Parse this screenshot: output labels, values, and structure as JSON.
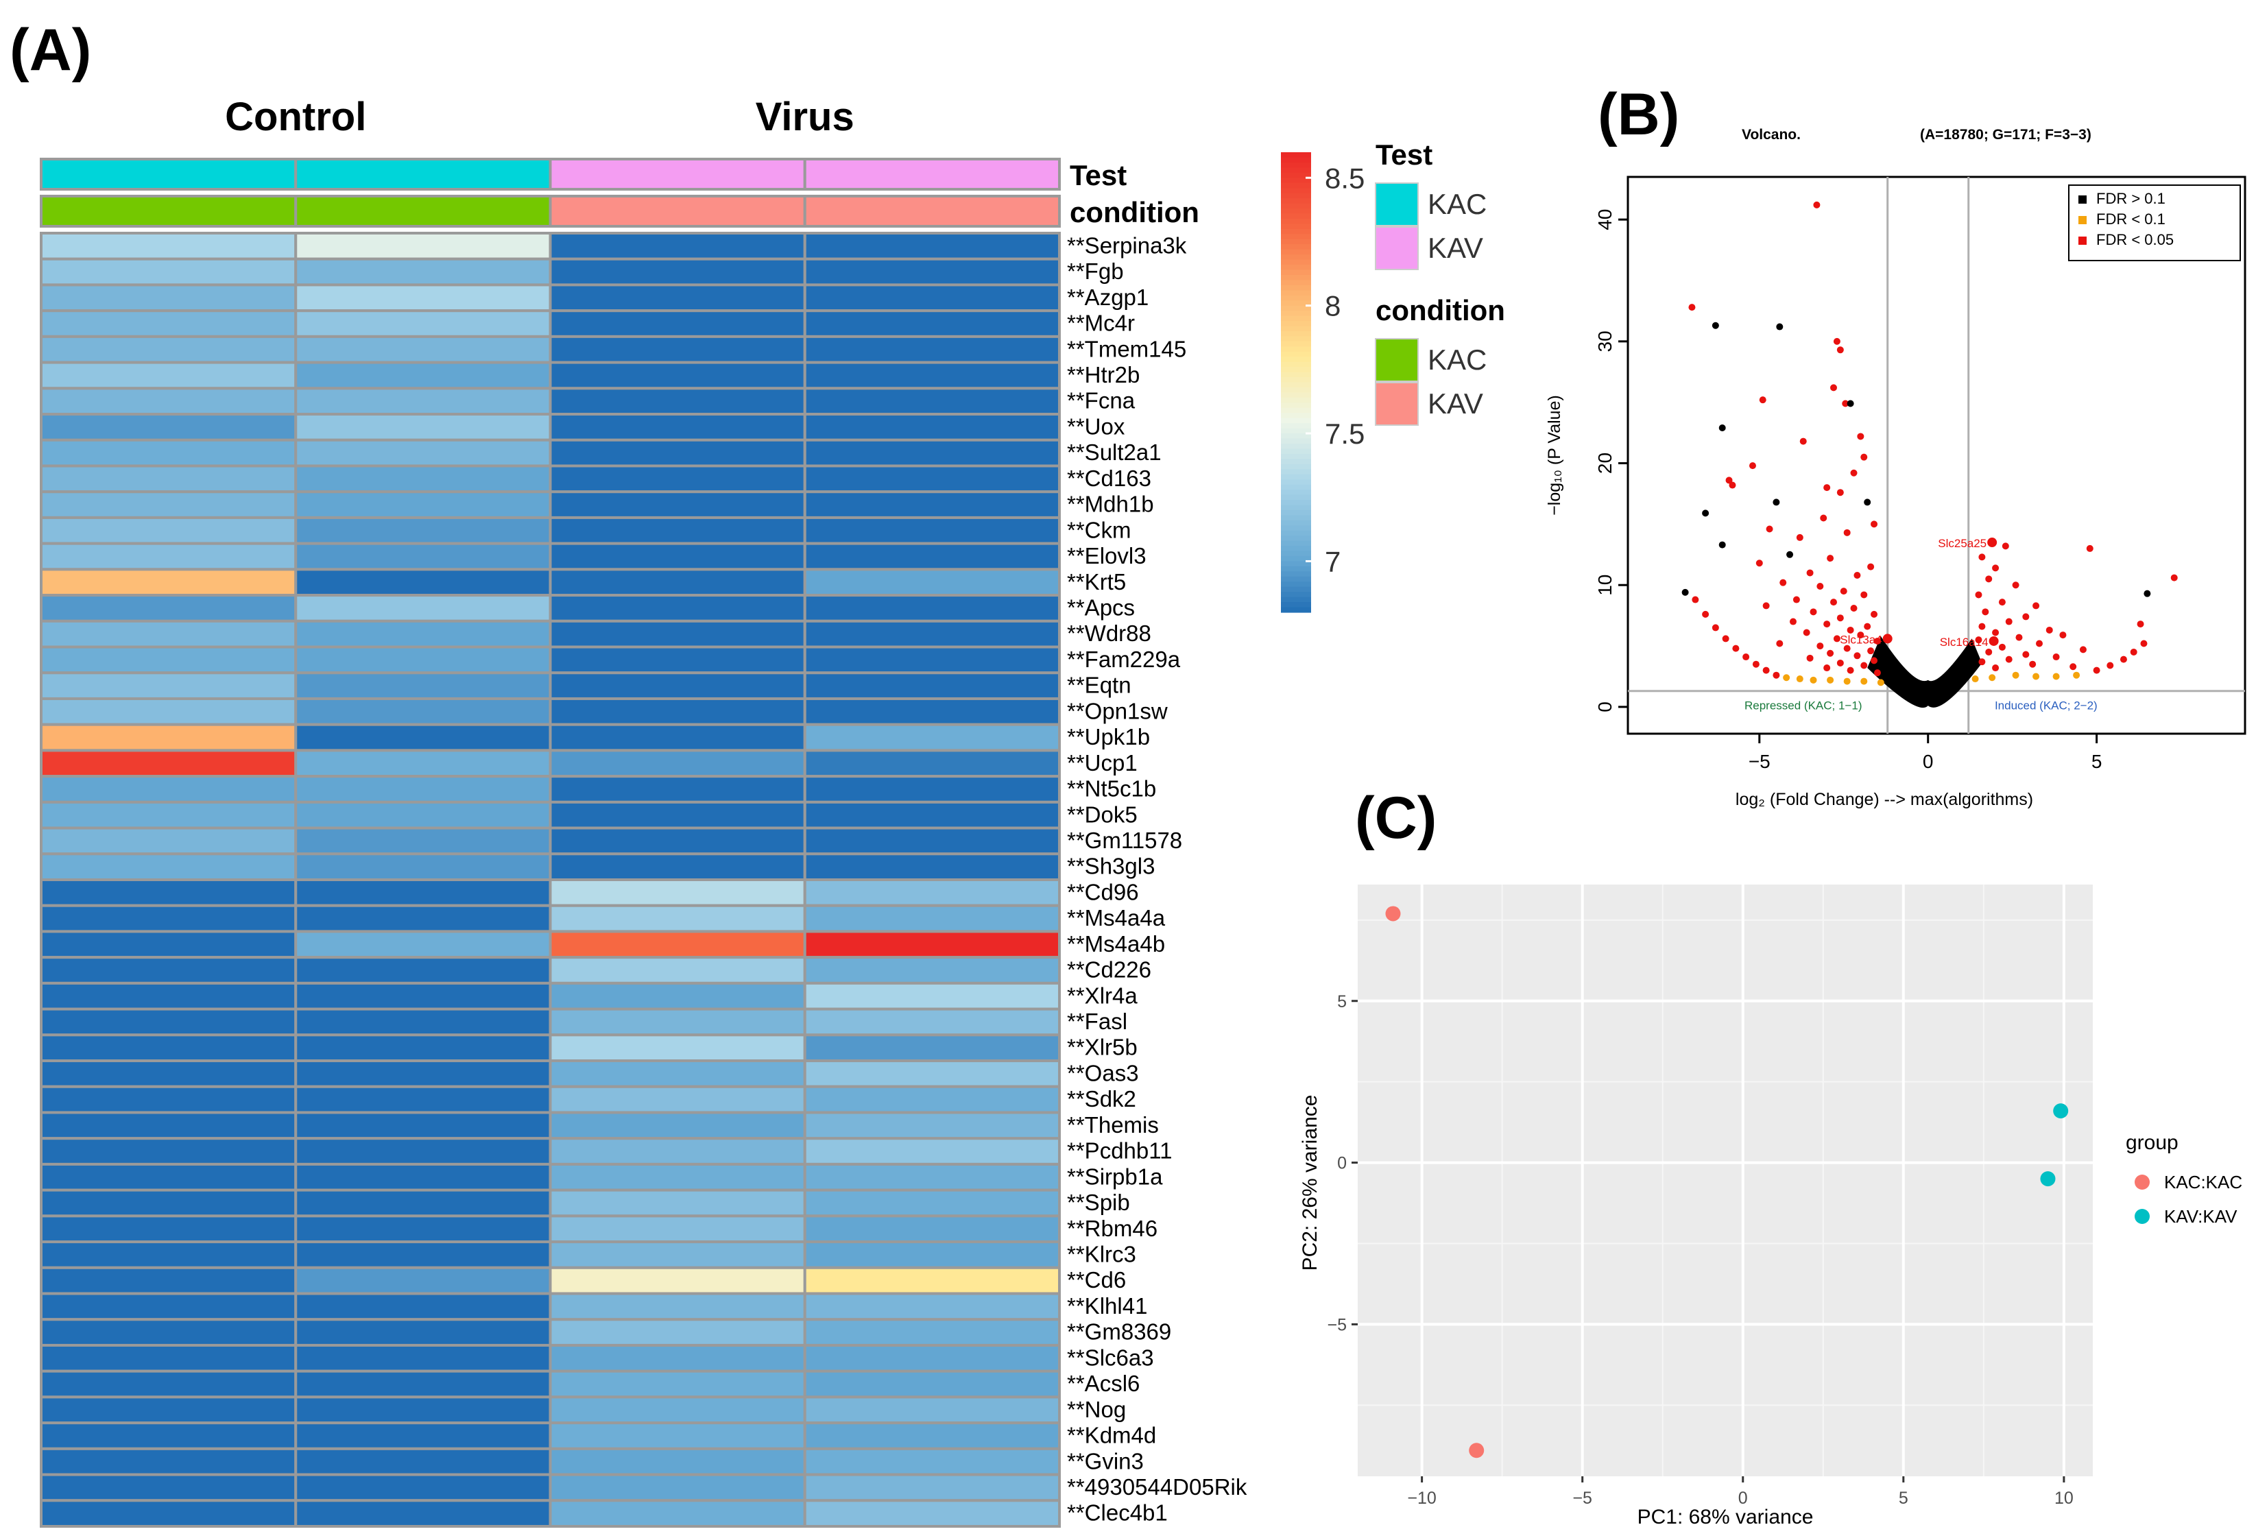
{
  "panel_labels": {
    "a": "(A)",
    "b": "(B)",
    "c": "(C)"
  },
  "chart_data": [
    {
      "type": "heatmap",
      "panel": "(A)",
      "column_groups": [
        "Control",
        "Virus"
      ],
      "annotation_rows": [
        "Test",
        "condition"
      ],
      "column_annotations": {
        "Test": [
          "KAC",
          "KAC",
          "KAV",
          "KAV"
        ],
        "condition": [
          "KAC",
          "KAC",
          "KAV",
          "KAV"
        ]
      },
      "legend": {
        "Test": {
          "title": "Test",
          "levels": [
            {
              "label": "KAC",
              "color": "#00d5d9"
            },
            {
              "label": "KAV",
              "color": "#f49df2"
            }
          ]
        },
        "condition": {
          "title": "condition",
          "levels": [
            {
              "label": "KAC",
              "color": "#74c800"
            },
            {
              "label": "KAV",
              "color": "#fb8f87"
            }
          ]
        }
      },
      "colorbar": {
        "min": 6.8,
        "max": 8.6,
        "ticks": [
          "8.5",
          "8",
          "7.5",
          "7"
        ],
        "tick_values": [
          8.5,
          8.0,
          7.5,
          7.0
        ]
      },
      "genes": [
        "**Serpina3k",
        "**Fgb",
        "**Azgp1",
        "**Mc4r",
        "**Tmem145",
        "**Htr2b",
        "**Fcna",
        "**Uox",
        "**Sult2a1",
        "**Cd163",
        "**Mdh1b",
        "**Ckm",
        "**Elovl3",
        "**Krt5",
        "**Apcs",
        "**Wdr88",
        "**Fam229a",
        "**Eqtn",
        "**Opn1sw",
        "**Upk1b",
        "**Ucp1",
        "**Nt5c1b",
        "**Dok5",
        "**Gm11578",
        "**Sh3gl3",
        "**Cd96",
        "**Ms4a4a",
        "**Ms4a4b",
        "**Cd226",
        "**Xlr4a",
        "**Fasl",
        "**Xlr5b",
        "**Oas3",
        "**Sdk2",
        "**Themis",
        "**Pcdhb11",
        "**Sirpb1a",
        "**Spib",
        "**Rbm46",
        "**Klrc3",
        "**Cd6",
        "**Klhl41",
        "**Gm8369",
        "**Slc6a3",
        "**Acsl6",
        "**Nog",
        "**Kdm4d",
        "**Gvin3",
        "**4930544D05Rik",
        "**Clec4b1"
      ],
      "values": [
        [
          7.3,
          7.5,
          6.8,
          6.8
        ],
        [
          7.2,
          7.1,
          6.8,
          6.8
        ],
        [
          7.1,
          7.3,
          6.8,
          6.8
        ],
        [
          7.1,
          7.2,
          6.8,
          6.8
        ],
        [
          7.1,
          7.1,
          6.8,
          6.8
        ],
        [
          7.2,
          7.0,
          6.8,
          6.8
        ],
        [
          7.1,
          7.1,
          6.8,
          6.8
        ],
        [
          6.95,
          7.2,
          6.8,
          6.8
        ],
        [
          7.05,
          7.1,
          6.8,
          6.8
        ],
        [
          7.1,
          7.0,
          6.8,
          6.8
        ],
        [
          7.1,
          7.0,
          6.8,
          6.8
        ],
        [
          7.15,
          6.95,
          6.8,
          6.8
        ],
        [
          7.15,
          6.95,
          6.8,
          6.8
        ],
        [
          8.0,
          6.8,
          6.8,
          7.0
        ],
        [
          6.95,
          7.2,
          6.8,
          6.8
        ],
        [
          7.1,
          7.0,
          6.8,
          6.8
        ],
        [
          7.05,
          7.0,
          6.8,
          6.8
        ],
        [
          7.15,
          6.95,
          6.8,
          6.8
        ],
        [
          7.15,
          6.95,
          6.8,
          6.8
        ],
        [
          8.05,
          6.8,
          6.8,
          7.05
        ],
        [
          8.5,
          7.05,
          6.95,
          6.85
        ],
        [
          7.0,
          7.0,
          6.8,
          6.8
        ],
        [
          7.05,
          7.0,
          6.8,
          6.8
        ],
        [
          7.1,
          6.95,
          6.8,
          6.8
        ],
        [
          7.05,
          6.95,
          6.8,
          6.8
        ],
        [
          6.8,
          6.8,
          7.35,
          7.15
        ],
        [
          6.8,
          6.8,
          7.25,
          7.05
        ],
        [
          6.8,
          7.05,
          8.3,
          8.6
        ],
        [
          6.8,
          6.8,
          7.25,
          7.05
        ],
        [
          6.8,
          6.8,
          7.0,
          7.3
        ],
        [
          6.8,
          6.8,
          7.1,
          7.15
        ],
        [
          6.8,
          6.8,
          7.3,
          6.95
        ],
        [
          6.8,
          6.8,
          7.05,
          7.2
        ],
        [
          6.8,
          6.8,
          7.15,
          7.05
        ],
        [
          6.8,
          6.8,
          7.0,
          7.1
        ],
        [
          6.8,
          6.8,
          7.1,
          7.2
        ],
        [
          6.8,
          6.8,
          7.05,
          7.05
        ],
        [
          6.8,
          6.8,
          7.15,
          7.05
        ],
        [
          6.8,
          6.8,
          7.15,
          7.0
        ],
        [
          6.8,
          6.8,
          7.1,
          7.0
        ],
        [
          6.8,
          6.95,
          7.65,
          7.8
        ],
        [
          6.8,
          6.8,
          7.1,
          7.1
        ],
        [
          6.8,
          6.8,
          7.15,
          7.05
        ],
        [
          6.8,
          6.8,
          7.0,
          7.0
        ],
        [
          6.8,
          6.8,
          7.05,
          7.0
        ],
        [
          6.8,
          6.8,
          7.05,
          7.1
        ],
        [
          6.8,
          6.8,
          7.05,
          7.0
        ],
        [
          6.8,
          6.8,
          7.0,
          7.05
        ],
        [
          6.8,
          6.8,
          7.0,
          7.1
        ],
        [
          6.8,
          6.8,
          7.05,
          7.15
        ]
      ]
    },
    {
      "type": "scatter",
      "panel": "(B)",
      "title": "Volcano.",
      "subtitle": "(A=18780;  G=171;  F=3−3)",
      "xlabel": "log₂ (Fold Change)  --> max(algorithms)",
      "ylabel": "−log₁₀ (P Value)",
      "xlim": [
        -8.9,
        9.4
      ],
      "ylim": [
        -2.2,
        43.5
      ],
      "xticks": [
        -5,
        0,
        5
      ],
      "yticks": [
        0,
        10,
        20,
        30,
        40
      ],
      "threshold_lines": {
        "x": [
          -1.2,
          1.2
        ],
        "y": [
          1.3
        ]
      },
      "legend": [
        {
          "label": "FDR > 0.1",
          "color": "#000000"
        },
        {
          "label": "FDR < 0.1",
          "color": "#f4a30c"
        },
        {
          "label": "FDR < 0.05",
          "color": "#e8110f"
        }
      ],
      "region_labels": {
        "left": "Repressed (KAC;  1−1)",
        "right": "Induced (KAC;  2−2)"
      },
      "highlighted_genes": [
        {
          "label": "Slc25a25",
          "x": 1.9,
          "y": 13.5
        },
        {
          "label": "Slc13a4",
          "x": -1.2,
          "y": 5.6
        },
        {
          "label": "Slc16a14",
          "x": 1.95,
          "y": 5.4
        }
      ],
      "points": [
        {
          "x": -3.3,
          "y": 41.2,
          "fdr": "<0.05"
        },
        {
          "x": -7.0,
          "y": 32.8,
          "fdr": "<0.05"
        },
        {
          "x": -6.3,
          "y": 31.3,
          "fdr": ">0.1"
        },
        {
          "x": -4.4,
          "y": 31.2,
          "fdr": ">0.1"
        },
        {
          "x": -2.7,
          "y": 30.0,
          "fdr": "<0.05"
        },
        {
          "x": -2.6,
          "y": 29.3,
          "fdr": "<0.05"
        },
        {
          "x": -2.8,
          "y": 26.2,
          "fdr": "<0.05"
        },
        {
          "x": -4.9,
          "y": 25.2,
          "fdr": "<0.05"
        },
        {
          "x": -2.45,
          "y": 24.9,
          "fdr": "<0.05"
        },
        {
          "x": -2.3,
          "y": 24.9,
          "fdr": ">0.1"
        },
        {
          "x": -6.1,
          "y": 22.9,
          "fdr": ">0.1"
        },
        {
          "x": -2.0,
          "y": 22.2,
          "fdr": "<0.05"
        },
        {
          "x": -3.7,
          "y": 21.8,
          "fdr": "<0.05"
        },
        {
          "x": -1.9,
          "y": 20.5,
          "fdr": "<0.05"
        },
        {
          "x": -5.2,
          "y": 19.8,
          "fdr": "<0.05"
        },
        {
          "x": -2.2,
          "y": 19.2,
          "fdr": "<0.05"
        },
        {
          "x": -5.9,
          "y": 18.6,
          "fdr": "<0.05"
        },
        {
          "x": -5.8,
          "y": 18.2,
          "fdr": "<0.05"
        },
        {
          "x": -3.0,
          "y": 18.0,
          "fdr": "<0.05"
        },
        {
          "x": -2.6,
          "y": 17.6,
          "fdr": "<0.05"
        },
        {
          "x": -4.5,
          "y": 16.8,
          "fdr": ">0.1"
        },
        {
          "x": -1.8,
          "y": 16.8,
          "fdr": ">0.1"
        },
        {
          "x": -6.6,
          "y": 15.9,
          "fdr": ">0.1"
        },
        {
          "x": -3.1,
          "y": 15.5,
          "fdr": "<0.05"
        },
        {
          "x": -1.6,
          "y": 15.0,
          "fdr": "<0.05"
        },
        {
          "x": -4.7,
          "y": 14.6,
          "fdr": "<0.05"
        },
        {
          "x": -2.4,
          "y": 14.3,
          "fdr": "<0.05"
        },
        {
          "x": -3.8,
          "y": 13.9,
          "fdr": "<0.05"
        },
        {
          "x": -6.1,
          "y": 13.3,
          "fdr": ">0.1"
        },
        {
          "x": -4.1,
          "y": 12.5,
          "fdr": ">0.1"
        },
        {
          "x": -2.9,
          "y": 12.2,
          "fdr": "<0.05"
        },
        {
          "x": -5.0,
          "y": 11.8,
          "fdr": "<0.05"
        },
        {
          "x": -1.7,
          "y": 11.5,
          "fdr": "<0.05"
        },
        {
          "x": -3.5,
          "y": 11.0,
          "fdr": "<0.05"
        },
        {
          "x": -2.1,
          "y": 10.8,
          "fdr": "<0.05"
        },
        {
          "x": -4.3,
          "y": 10.2,
          "fdr": "<0.05"
        },
        {
          "x": -3.2,
          "y": 9.9,
          "fdr": "<0.05"
        },
        {
          "x": -2.5,
          "y": 9.5,
          "fdr": "<0.05"
        },
        {
          "x": -7.2,
          "y": 9.4,
          "fdr": ">0.1"
        },
        {
          "x": -1.9,
          "y": 9.2,
          "fdr": "<0.05"
        },
        {
          "x": -3.9,
          "y": 8.8,
          "fdr": "<0.05"
        },
        {
          "x": -2.8,
          "y": 8.6,
          "fdr": "<0.05"
        },
        {
          "x": -4.8,
          "y": 8.3,
          "fdr": "<0.05"
        },
        {
          "x": -2.2,
          "y": 8.1,
          "fdr": "<0.05"
        },
        {
          "x": -3.4,
          "y": 7.8,
          "fdr": "<0.05"
        },
        {
          "x": -1.6,
          "y": 7.6,
          "fdr": "<0.05"
        },
        {
          "x": -2.6,
          "y": 7.3,
          "fdr": "<0.05"
        },
        {
          "x": -4.0,
          "y": 7.0,
          "fdr": "<0.05"
        },
        {
          "x": -3.0,
          "y": 6.8,
          "fdr": "<0.05"
        },
        {
          "x": -1.8,
          "y": 6.6,
          "fdr": "<0.05"
        },
        {
          "x": -2.3,
          "y": 6.3,
          "fdr": "<0.05"
        },
        {
          "x": -3.6,
          "y": 6.1,
          "fdr": "<0.05"
        },
        {
          "x": -2.0,
          "y": 5.9,
          "fdr": "<0.05"
        },
        {
          "x": -2.7,
          "y": 5.6,
          "fdr": "<0.05"
        },
        {
          "x": -1.5,
          "y": 5.4,
          "fdr": "<0.05"
        },
        {
          "x": -4.4,
          "y": 5.2,
          "fdr": "<0.05"
        },
        {
          "x": -3.2,
          "y": 5.0,
          "fdr": "<0.05"
        },
        {
          "x": -2.4,
          "y": 4.8,
          "fdr": "<0.05"
        },
        {
          "x": -1.7,
          "y": 4.6,
          "fdr": "<0.05"
        },
        {
          "x": -2.9,
          "y": 4.4,
          "fdr": "<0.05"
        },
        {
          "x": -2.1,
          "y": 4.2,
          "fdr": "<0.05"
        },
        {
          "x": -3.5,
          "y": 4.0,
          "fdr": "<0.05"
        },
        {
          "x": -1.6,
          "y": 3.8,
          "fdr": "<0.05"
        },
        {
          "x": -2.6,
          "y": 3.6,
          "fdr": "<0.05"
        },
        {
          "x": -1.9,
          "y": 3.4,
          "fdr": "<0.05"
        },
        {
          "x": -3.0,
          "y": 3.2,
          "fdr": "<0.05"
        },
        {
          "x": -2.3,
          "y": 3.0,
          "fdr": "<0.05"
        },
        {
          "x": -1.5,
          "y": 2.8,
          "fdr": "<0.05"
        },
        {
          "x": -6.9,
          "y": 8.8,
          "fdr": "<0.05"
        },
        {
          "x": -6.6,
          "y": 7.6,
          "fdr": "<0.05"
        },
        {
          "x": -6.3,
          "y": 6.5,
          "fdr": "<0.05"
        },
        {
          "x": -6.0,
          "y": 5.6,
          "fdr": "<0.05"
        },
        {
          "x": -5.7,
          "y": 4.8,
          "fdr": "<0.05"
        },
        {
          "x": -5.4,
          "y": 4.1,
          "fdr": "<0.05"
        },
        {
          "x": -5.1,
          "y": 3.5,
          "fdr": "<0.05"
        },
        {
          "x": -4.8,
          "y": 3.0,
          "fdr": "<0.05"
        },
        {
          "x": -4.5,
          "y": 2.6,
          "fdr": "<0.05"
        },
        {
          "x": -4.2,
          "y": 2.4,
          "fdr": "<0.1"
        },
        {
          "x": -3.8,
          "y": 2.3,
          "fdr": "<0.1"
        },
        {
          "x": -3.4,
          "y": 2.2,
          "fdr": "<0.1"
        },
        {
          "x": -2.9,
          "y": 2.2,
          "fdr": "<0.1"
        },
        {
          "x": -2.4,
          "y": 2.1,
          "fdr": "<0.1"
        },
        {
          "x": -1.9,
          "y": 2.1,
          "fdr": "<0.1"
        },
        {
          "x": -1.4,
          "y": 2.0,
          "fdr": "<0.1"
        },
        {
          "x": 2.3,
          "y": 13.2,
          "fdr": "<0.05"
        },
        {
          "x": 4.8,
          "y": 13.0,
          "fdr": "<0.05"
        },
        {
          "x": 1.6,
          "y": 12.3,
          "fdr": "<0.05"
        },
        {
          "x": 2.0,
          "y": 11.4,
          "fdr": "<0.05"
        },
        {
          "x": 7.3,
          "y": 10.6,
          "fdr": "<0.05"
        },
        {
          "x": 1.8,
          "y": 10.5,
          "fdr": "<0.05"
        },
        {
          "x": 2.6,
          "y": 10.0,
          "fdr": "<0.05"
        },
        {
          "x": 6.5,
          "y": 9.3,
          "fdr": ">0.1"
        },
        {
          "x": 1.5,
          "y": 9.2,
          "fdr": "<0.05"
        },
        {
          "x": 2.2,
          "y": 8.6,
          "fdr": "<0.05"
        },
        {
          "x": 3.2,
          "y": 8.3,
          "fdr": "<0.05"
        },
        {
          "x": 1.7,
          "y": 7.8,
          "fdr": "<0.05"
        },
        {
          "x": 2.9,
          "y": 7.4,
          "fdr": "<0.05"
        },
        {
          "x": 2.4,
          "y": 7.0,
          "fdr": "<0.05"
        },
        {
          "x": 6.3,
          "y": 6.8,
          "fdr": "<0.05"
        },
        {
          "x": 1.6,
          "y": 6.6,
          "fdr": "<0.05"
        },
        {
          "x": 3.6,
          "y": 6.3,
          "fdr": "<0.05"
        },
        {
          "x": 2.0,
          "y": 6.1,
          "fdr": "<0.05"
        },
        {
          "x": 4.0,
          "y": 5.9,
          "fdr": "<0.05"
        },
        {
          "x": 2.7,
          "y": 5.7,
          "fdr": "<0.05"
        },
        {
          "x": 1.5,
          "y": 5.5,
          "fdr": "<0.05"
        },
        {
          "x": 3.3,
          "y": 5.2,
          "fdr": "<0.05"
        },
        {
          "x": 2.2,
          "y": 4.9,
          "fdr": "<0.05"
        },
        {
          "x": 4.6,
          "y": 4.7,
          "fdr": "<0.05"
        },
        {
          "x": 1.8,
          "y": 4.5,
          "fdr": "<0.05"
        },
        {
          "x": 2.9,
          "y": 4.3,
          "fdr": "<0.05"
        },
        {
          "x": 3.8,
          "y": 4.1,
          "fdr": "<0.05"
        },
        {
          "x": 2.4,
          "y": 3.9,
          "fdr": "<0.05"
        },
        {
          "x": 1.6,
          "y": 3.7,
          "fdr": "<0.05"
        },
        {
          "x": 3.1,
          "y": 3.5,
          "fdr": "<0.05"
        },
        {
          "x": 4.3,
          "y": 3.3,
          "fdr": "<0.05"
        },
        {
          "x": 2.0,
          "y": 3.2,
          "fdr": "<0.05"
        },
        {
          "x": 5.0,
          "y": 3.0,
          "fdr": "<0.05"
        },
        {
          "x": 5.4,
          "y": 3.4,
          "fdr": "<0.05"
        },
        {
          "x": 5.8,
          "y": 3.9,
          "fdr": "<0.05"
        },
        {
          "x": 6.1,
          "y": 4.5,
          "fdr": "<0.05"
        },
        {
          "x": 6.4,
          "y": 5.2,
          "fdr": "<0.05"
        },
        {
          "x": 2.6,
          "y": 2.6,
          "fdr": "<0.1"
        },
        {
          "x": 3.2,
          "y": 2.5,
          "fdr": "<0.1"
        },
        {
          "x": 3.8,
          "y": 2.5,
          "fdr": "<0.1"
        },
        {
          "x": 4.4,
          "y": 2.6,
          "fdr": "<0.1"
        },
        {
          "x": 1.9,
          "y": 2.4,
          "fdr": "<0.1"
        },
        {
          "x": 1.4,
          "y": 2.3,
          "fdr": "<0.1"
        }
      ]
    },
    {
      "type": "scatter",
      "panel": "(C)",
      "xlabel": "PC1: 68% variance",
      "ylabel": "PC2: 26% variance",
      "xlim": [
        -12.0,
        10.9
      ],
      "ylim": [
        -9.7,
        8.6
      ],
      "xticks": [
        -10,
        -5,
        0,
        5,
        10
      ],
      "yticks": [
        -5,
        0,
        5
      ],
      "legend_title": "group",
      "series": [
        {
          "name": "KAC:KAC",
          "color": "#f8766d",
          "points": [
            {
              "x": -10.9,
              "y": 7.7
            },
            {
              "x": -8.3,
              "y": -8.9
            }
          ]
        },
        {
          "name": "KAV:KAV",
          "color": "#00bfc4",
          "points": [
            {
              "x": 9.9,
              "y": 1.6
            },
            {
              "x": 9.5,
              "y": -0.5
            }
          ]
        }
      ]
    }
  ]
}
